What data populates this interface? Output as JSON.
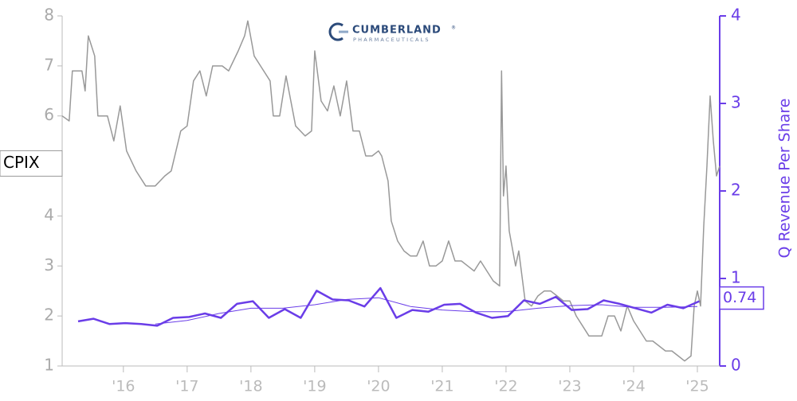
{
  "chart_data": {
    "type": "line",
    "ticker": "CPIX",
    "logo": {
      "name": "CUMBERLAND",
      "mark": "®",
      "sub": "PHARMACEUTICALS"
    },
    "y2label": "Q Revenue Per Share",
    "xlim": [
      2015.04,
      2025.35
    ],
    "xticks": [
      {
        "value": 2016,
        "label": "'16"
      },
      {
        "value": 2017,
        "label": "'17"
      },
      {
        "value": 2018,
        "label": "'18"
      },
      {
        "value": 2019,
        "label": "'19"
      },
      {
        "value": 2020,
        "label": "'20"
      },
      {
        "value": 2021,
        "label": "'21"
      },
      {
        "value": 2022,
        "label": "'22"
      },
      {
        "value": 2023,
        "label": "'23"
      },
      {
        "value": 2024,
        "label": "'24"
      },
      {
        "value": 2025,
        "label": "'25"
      }
    ],
    "ylim": [
      1,
      8
    ],
    "yticks": [
      1,
      2,
      3,
      4,
      5,
      6,
      7,
      8
    ],
    "y2lim": [
      0,
      4
    ],
    "y2ticks": [
      0,
      1,
      2,
      3,
      4
    ],
    "series": [
      {
        "color": "#999999",
        "width": 1.5,
        "x": [
          2015.04,
          2015.15,
          2015.2,
          2015.35,
          2015.4,
          2015.45,
          2015.55,
          2015.6,
          2015.75,
          2015.85,
          2015.95,
          2016.05,
          2016.2,
          2016.35,
          2016.5,
          2016.65,
          2016.75,
          2016.9,
          2017.0,
          2017.1,
          2017.2,
          2017.3,
          2017.4,
          2017.55,
          2017.65,
          2017.8,
          2017.9,
          2017.95,
          2018.05,
          2018.15,
          2018.3,
          2018.35,
          2018.45,
          2018.55,
          2018.7,
          2018.85,
          2018.95,
          2019.0,
          2019.1,
          2019.2,
          2019.3,
          2019.4,
          2019.5,
          2019.6,
          2019.7,
          2019.8,
          2019.9,
          2020.0,
          2020.05,
          2020.15,
          2020.2,
          2020.3,
          2020.4,
          2020.5,
          2020.6,
          2020.7,
          2020.8,
          2020.9,
          2021.0,
          2021.1,
          2021.2,
          2021.3,
          2021.4,
          2021.5,
          2021.6,
          2021.7,
          2021.8,
          2021.9,
          2021.93,
          2021.96,
          2022.0,
          2022.05,
          2022.15,
          2022.2,
          2022.3,
          2022.4,
          2022.5,
          2022.6,
          2022.7,
          2022.8,
          2022.9,
          2023.0,
          2023.1,
          2023.2,
          2023.3,
          2023.4,
          2023.5,
          2023.6,
          2023.7,
          2023.8,
          2023.9,
          2024.0,
          2024.1,
          2024.2,
          2024.3,
          2024.4,
          2024.5,
          2024.6,
          2024.7,
          2024.8,
          2024.9,
          2024.95,
          2025.0,
          2025.05,
          2025.1,
          2025.15,
          2025.2,
          2025.25,
          2025.3,
          2025.35
        ],
        "values": [
          6.0,
          5.9,
          6.9,
          6.9,
          6.5,
          7.6,
          7.2,
          6.0,
          6.0,
          5.5,
          6.2,
          5.3,
          4.9,
          4.6,
          4.6,
          4.8,
          4.9,
          5.7,
          5.8,
          6.7,
          6.9,
          6.4,
          7.0,
          7.0,
          6.9,
          7.3,
          7.6,
          7.9,
          7.2,
          7.0,
          6.7,
          6.0,
          6.0,
          6.8,
          5.8,
          5.6,
          5.7,
          7.3,
          6.3,
          6.1,
          6.6,
          6.0,
          6.7,
          5.7,
          5.7,
          5.2,
          5.2,
          5.3,
          5.2,
          4.7,
          3.9,
          3.5,
          3.3,
          3.2,
          3.2,
          3.5,
          3.0,
          3.0,
          3.1,
          3.5,
          3.1,
          3.1,
          3.0,
          2.9,
          3.1,
          2.9,
          2.7,
          2.6,
          6.9,
          4.4,
          5.0,
          3.7,
          3.0,
          3.3,
          2.3,
          2.2,
          2.4,
          2.5,
          2.5,
          2.4,
          2.3,
          2.3,
          2.0,
          1.8,
          1.6,
          1.6,
          1.6,
          2.0,
          2.0,
          1.7,
          2.2,
          1.9,
          1.7,
          1.5,
          1.5,
          1.4,
          1.3,
          1.3,
          1.2,
          1.1,
          1.2,
          2.2,
          2.5,
          2.2,
          3.8,
          5.0,
          6.4,
          5.5,
          4.8,
          5.0
        ]
      },
      {
        "color": "#6a3de8",
        "width": 2.5,
        "axis": "y2",
        "x": [
          2015.29,
          2015.53,
          2015.78,
          2016.03,
          2016.28,
          2016.53,
          2016.78,
          2017.03,
          2017.28,
          2017.53,
          2017.78,
          2018.03,
          2018.28,
          2018.53,
          2018.78,
          2019.03,
          2019.28,
          2019.53,
          2019.78,
          2020.03,
          2020.28,
          2020.53,
          2020.78,
          2021.03,
          2021.28,
          2021.53,
          2021.78,
          2022.03,
          2022.28,
          2022.53,
          2022.78,
          2023.03,
          2023.28,
          2023.53,
          2023.78,
          2024.03,
          2024.28,
          2024.53,
          2024.78,
          2025.03
        ],
        "values": [
          0.51,
          0.54,
          0.48,
          0.49,
          0.48,
          0.46,
          0.55,
          0.56,
          0.6,
          0.55,
          0.71,
          0.74,
          0.55,
          0.65,
          0.55,
          0.86,
          0.76,
          0.75,
          0.68,
          0.89,
          0.55,
          0.64,
          0.62,
          0.7,
          0.71,
          0.61,
          0.55,
          0.57,
          0.75,
          0.71,
          0.79,
          0.64,
          0.65,
          0.75,
          0.71,
          0.66,
          0.61,
          0.7,
          0.66,
          0.74
        ]
      },
      {
        "color": "#6a3de8",
        "width": 1,
        "axis": "y2",
        "x": [
          2016.5,
          2017.0,
          2017.5,
          2018.0,
          2018.5,
          2019.0,
          2019.5,
          2020.0,
          2020.5,
          2021.0,
          2021.5,
          2022.0,
          2022.5,
          2023.0,
          2023.5,
          2024.0,
          2024.5,
          2025.0
        ],
        "values": [
          0.48,
          0.52,
          0.6,
          0.66,
          0.66,
          0.7,
          0.76,
          0.78,
          0.68,
          0.64,
          0.62,
          0.62,
          0.66,
          0.69,
          0.7,
          0.67,
          0.67,
          0.68
        ]
      }
    ]
  }
}
